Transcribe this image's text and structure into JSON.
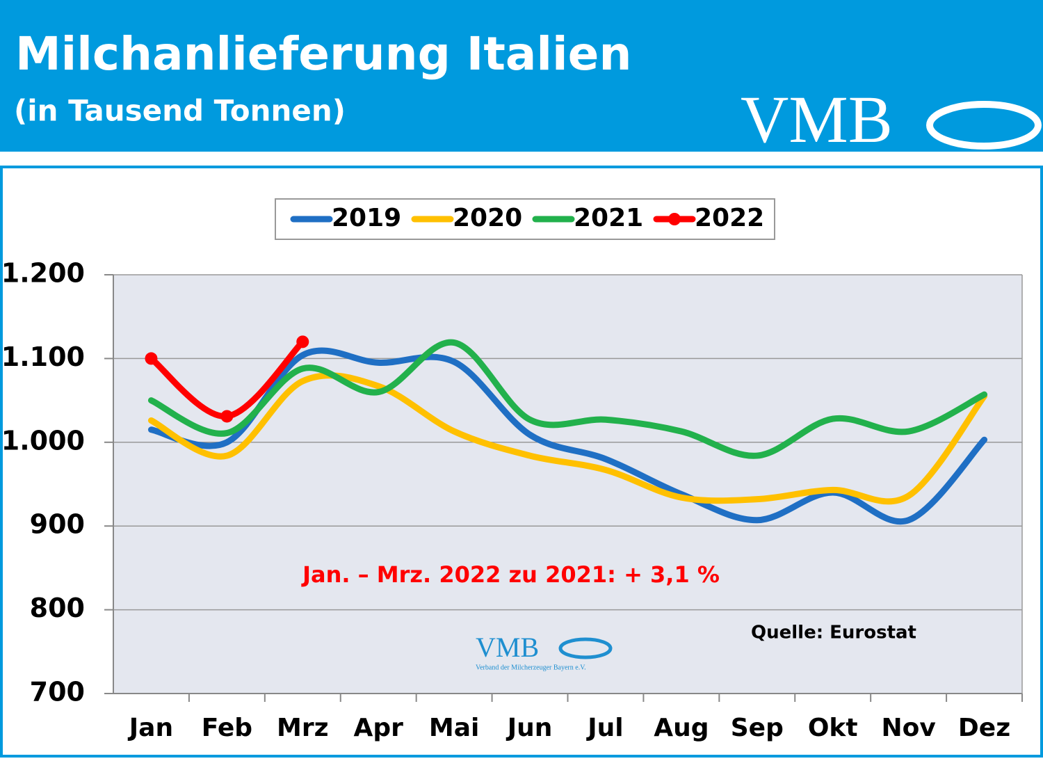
{
  "header": {
    "title": "Milchanlieferung Italien",
    "subtitle": "(in Tausend Tonnen)",
    "logo": "VMB"
  },
  "chart_data": {
    "type": "line",
    "categories": [
      "Jan",
      "Feb",
      "Mrz",
      "Apr",
      "Mai",
      "Jun",
      "Jul",
      "Aug",
      "Sep",
      "Okt",
      "Nov",
      "Dez"
    ],
    "series": [
      {
        "name": "2019",
        "color": "#1f6fc4",
        "values": [
          1015,
          1000,
          1104,
          1095,
          1096,
          1009,
          980,
          938,
          907,
          940,
          907,
          1003
        ]
      },
      {
        "name": "2020",
        "color": "#ffc000",
        "values": [
          1026,
          984,
          1073,
          1067,
          1013,
          984,
          967,
          934,
          932,
          943,
          936,
          1055
        ]
      },
      {
        "name": "2021",
        "color": "#22b14c",
        "values": [
          1050,
          1011,
          1088,
          1060,
          1119,
          1027,
          1027,
          1013,
          984,
          1028,
          1013,
          1057
        ]
      },
      {
        "name": "2022",
        "color": "#ff0000",
        "marker": true,
        "values": [
          1100,
          1031,
          1120,
          null,
          null,
          null,
          null,
          null,
          null,
          null,
          null,
          null
        ]
      }
    ],
    "ylim": [
      700,
      1200
    ],
    "yticks": [
      700,
      800,
      900,
      {
        "value": 1000,
        "label": "1.000"
      },
      {
        "value": 1100,
        "label": "1.100"
      },
      {
        "value": 1200,
        "label": "1.200"
      }
    ],
    "grid": true,
    "legend": "top",
    "annotations": [
      "Jan. – Mrz. 2022 zu 2021: + 3,1 %",
      "Quelle: Eurostat"
    ],
    "watermark": {
      "logo": "VMB",
      "caption": "Verband der Milcherzeuger Bayern e.V."
    }
  }
}
